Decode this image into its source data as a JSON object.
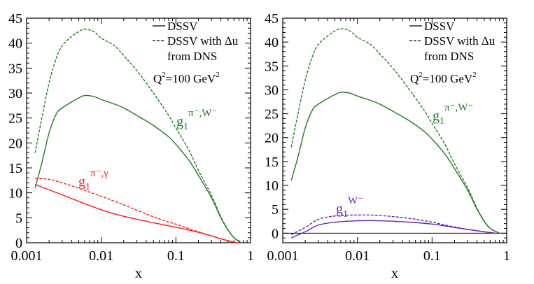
{
  "chart_data": [
    {
      "type": "line",
      "panel": "left",
      "xlabel": "x",
      "ylabel": "",
      "xscale": "log",
      "xlim": [
        0.001,
        1
      ],
      "ylim": [
        0,
        45
      ],
      "xticks": [
        0.001,
        0.01,
        0.1,
        1
      ],
      "xtick_labels": [
        "0.001",
        "0.01",
        "0.1",
        "1"
      ],
      "yticks": [
        0,
        5,
        10,
        15,
        20,
        25,
        30,
        35,
        40,
        45
      ],
      "ytick_labels": [
        "0",
        "5",
        "10",
        "15",
        "20",
        "25",
        "30",
        "35",
        "40",
        "45"
      ],
      "grid": false,
      "legend": {
        "placement": "top-right",
        "entries": [
          {
            "style": "solid",
            "label": "DSSV"
          },
          {
            "style": "dashed",
            "label": "DSSV with Δu",
            "label2": "from DNS"
          }
        ]
      },
      "annotation": {
        "q2_label": "Q",
        "q2_sup": "2",
        "q2_rest": "=100 GeV",
        "q2_sup2": "2"
      },
      "curve_labels": [
        {
          "base": "g",
          "sub": "1",
          "sup": "π⁻,W⁻",
          "color": "#217a21"
        },
        {
          "base": "g",
          "sub": "1",
          "sup": "π⁻,γ",
          "color": "#ff1a1a"
        }
      ],
      "series": [
        {
          "style": "solid",
          "color": "#217a21",
          "x": [
            0.0013,
            0.0016,
            0.002,
            0.0025,
            0.003,
            0.004,
            0.005,
            0.006,
            0.008,
            0.01,
            0.015,
            0.02,
            0.03,
            0.05,
            0.08,
            0.1,
            0.15,
            0.2,
            0.3,
            0.4,
            0.5,
            0.6,
            0.75
          ],
          "y": [
            11,
            16,
            22,
            25.8,
            27,
            28.2,
            29,
            29.5,
            29.3,
            28.7,
            27.8,
            27,
            25.5,
            23.5,
            21.2,
            19.7,
            16.5,
            13.5,
            9,
            5,
            2.5,
            1,
            0
          ]
        },
        {
          "style": "dashed",
          "color": "#217a21",
          "x": [
            0.0013,
            0.0016,
            0.002,
            0.0025,
            0.003,
            0.004,
            0.005,
            0.006,
            0.008,
            0.01,
            0.015,
            0.02,
            0.03,
            0.05,
            0.08,
            0.1,
            0.15,
            0.2,
            0.3,
            0.4,
            0.5,
            0.6,
            0.75
          ],
          "y": [
            18,
            25,
            32,
            37,
            39.5,
            41.3,
            42.3,
            42.8,
            42.3,
            41,
            39.5,
            37.5,
            34.5,
            30,
            25.5,
            23,
            18.5,
            14.5,
            9.5,
            5.2,
            2.6,
            1,
            0
          ]
        },
        {
          "style": "solid",
          "color": "#ff1a1a",
          "x": [
            0.0013,
            0.002,
            0.003,
            0.005,
            0.01,
            0.02,
            0.05,
            0.1,
            0.2,
            0.4,
            0.6,
            0.7
          ],
          "y": [
            11.7,
            10.6,
            9.6,
            8.3,
            6.6,
            5.3,
            4.0,
            3.1,
            2.1,
            0.8,
            0.1,
            0
          ]
        },
        {
          "style": "dashed",
          "color": "#ff1a1a",
          "x": [
            0.0013,
            0.002,
            0.003,
            0.005,
            0.01,
            0.02,
            0.05,
            0.1,
            0.2,
            0.4,
            0.6,
            0.7
          ],
          "y": [
            12.9,
            12.7,
            12,
            10.9,
            9.3,
            7.6,
            5.2,
            3.7,
            2.2,
            0.8,
            0.1,
            0
          ]
        }
      ]
    },
    {
      "type": "line",
      "panel": "right",
      "xlabel": "x",
      "ylabel": "",
      "xscale": "log",
      "xlim": [
        0.001,
        1
      ],
      "ylim": [
        -2,
        45
      ],
      "xticks": [
        0.001,
        0.01,
        0.1,
        1
      ],
      "xtick_labels": [
        "0.001",
        "0.01",
        "0.1",
        "1"
      ],
      "yticks": [
        0,
        5,
        10,
        15,
        20,
        25,
        30,
        35,
        40,
        45
      ],
      "ytick_labels": [
        "0",
        "5",
        "10",
        "15",
        "20",
        "25",
        "30",
        "35",
        "40",
        "45"
      ],
      "grid": false,
      "zero_line": true,
      "legend": {
        "placement": "top-right",
        "entries": [
          {
            "style": "solid",
            "label": "DSSV"
          },
          {
            "style": "dashed",
            "label": "DSSV with Δu",
            "label2": "from DNS"
          }
        ]
      },
      "annotation": {
        "q2_label": "Q",
        "q2_sup": "2",
        "q2_rest": "=100 GeV",
        "q2_sup2": "2"
      },
      "curve_labels": [
        {
          "base": "g",
          "sub": "1",
          "sup": "π⁻,W⁻",
          "color": "#217a21"
        },
        {
          "base": "g",
          "sub": "1",
          "sup": "W⁻",
          "color": "#6a22b0"
        }
      ],
      "series": [
        {
          "style": "solid",
          "color": "#217a21",
          "x": [
            0.0013,
            0.0016,
            0.002,
            0.0025,
            0.003,
            0.004,
            0.005,
            0.006,
            0.008,
            0.01,
            0.015,
            0.02,
            0.03,
            0.05,
            0.08,
            0.1,
            0.15,
            0.2,
            0.3,
            0.4,
            0.5,
            0.6,
            0.8
          ],
          "y": [
            11,
            16,
            22,
            25.8,
            27,
            28.2,
            29,
            29.5,
            29.3,
            28.7,
            27.8,
            27,
            25.5,
            23.5,
            21.2,
            19.7,
            16.5,
            13.5,
            9,
            5,
            2.5,
            1,
            0
          ]
        },
        {
          "style": "dashed",
          "color": "#217a21",
          "x": [
            0.0013,
            0.0016,
            0.002,
            0.0025,
            0.003,
            0.004,
            0.005,
            0.006,
            0.008,
            0.01,
            0.015,
            0.02,
            0.03,
            0.05,
            0.08,
            0.1,
            0.15,
            0.2,
            0.3,
            0.4,
            0.5,
            0.6,
            0.8
          ],
          "y": [
            18,
            25,
            32,
            37,
            39.5,
            41.3,
            42.3,
            42.8,
            42.3,
            41,
            39.5,
            37.5,
            34.5,
            30,
            25.5,
            23,
            18.5,
            14.5,
            9.5,
            5.2,
            2.6,
            1,
            0
          ]
        },
        {
          "style": "solid",
          "color": "#6a22b0",
          "x": [
            0.0013,
            0.002,
            0.003,
            0.005,
            0.01,
            0.02,
            0.05,
            0.1,
            0.2,
            0.4,
            0.7
          ],
          "y": [
            -1,
            0.3,
            1.7,
            2.3,
            2.6,
            2.6,
            2.3,
            1.9,
            1.2,
            0.5,
            0
          ]
        },
        {
          "style": "dashed",
          "color": "#6a22b0",
          "x": [
            0.0013,
            0.002,
            0.003,
            0.005,
            0.01,
            0.02,
            0.05,
            0.1,
            0.2,
            0.4,
            0.7
          ],
          "y": [
            -0.3,
            1.2,
            2.9,
            3.6,
            3.8,
            3.7,
            3.1,
            2.3,
            1.3,
            0.5,
            0
          ]
        }
      ]
    }
  ]
}
